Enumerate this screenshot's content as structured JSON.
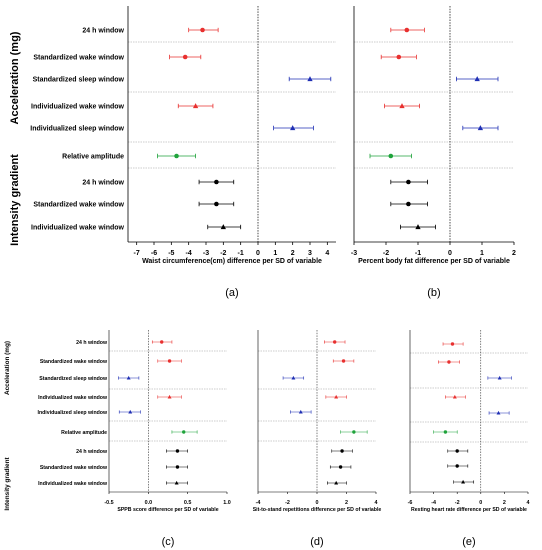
{
  "colors": {
    "red": "#e8302f",
    "blue": "#1f2fb4",
    "green": "#1fa33b",
    "black": "#000000"
  },
  "groups": {
    "acceleration": "Acceleration (mg)",
    "intensity": "Intensity gradient"
  },
  "rows": [
    "24 h window",
    "Standardized wake window",
    "Standardized sleep window",
    "Individualized wake window",
    "Individualized sleep window",
    "Relative amplitude",
    "24 h window",
    "Standardized wake window",
    "Individualized wake window"
  ],
  "row_colors": [
    "red",
    "red",
    "blue",
    "red",
    "blue",
    "green",
    "black",
    "black",
    "black"
  ],
  "row_markers": [
    "circle",
    "circle",
    "triangle",
    "triangle",
    "triangle",
    "circle",
    "circle",
    "circle",
    "triangle"
  ],
  "chart_data": [
    {
      "id": "a",
      "panel_label": "(a)",
      "type": "forest",
      "xlabel": "Waist circumference(cm) difference per SD of variable",
      "xlim": [
        -7.5,
        4.5
      ],
      "ticks": [
        -7,
        -6,
        -5,
        -4,
        -3,
        -2,
        -1,
        0,
        1,
        2,
        3,
        4
      ],
      "reference_x": 0,
      "points": [
        {
          "est": -3.2,
          "lo": -4.0,
          "hi": -2.3
        },
        {
          "est": -4.2,
          "lo": -5.1,
          "hi": -3.3
        },
        {
          "est": 3.0,
          "lo": 1.8,
          "hi": 4.2
        },
        {
          "est": -3.6,
          "lo": -4.6,
          "hi": -2.6
        },
        {
          "est": 2.0,
          "lo": 0.9,
          "hi": 3.2
        },
        {
          "est": -4.7,
          "lo": -5.8,
          "hi": -3.6
        },
        {
          "est": -2.4,
          "lo": -3.4,
          "hi": -1.4
        },
        {
          "est": -2.4,
          "lo": -3.4,
          "hi": -1.4
        },
        {
          "est": -2.0,
          "lo": -2.9,
          "hi": -1.0
        }
      ]
    },
    {
      "id": "b",
      "panel_label": "(b)",
      "type": "forest",
      "xlabel": "Percent body fat difference per SD of variable",
      "xlim": [
        -3,
        2
      ],
      "ticks": [
        -3,
        -2,
        -1,
        0,
        1,
        2
      ],
      "reference_x": 0,
      "points": [
        {
          "est": -1.35,
          "lo": -1.85,
          "hi": -0.8
        },
        {
          "est": -1.6,
          "lo": -2.15,
          "hi": -1.05
        },
        {
          "est": 0.85,
          "lo": 0.2,
          "hi": 1.5
        },
        {
          "est": -1.5,
          "lo": -2.05,
          "hi": -0.95
        },
        {
          "est": 0.95,
          "lo": 0.4,
          "hi": 1.5
        },
        {
          "est": -1.85,
          "lo": -2.5,
          "hi": -1.2
        },
        {
          "est": -1.3,
          "lo": -1.85,
          "hi": -0.7
        },
        {
          "est": -1.3,
          "lo": -1.85,
          "hi": -0.7
        },
        {
          "est": -1.0,
          "lo": -1.55,
          "hi": -0.45
        }
      ]
    },
    {
      "id": "c",
      "panel_label": "(c)",
      "type": "forest",
      "xlabel": "SPPB score difference per SD of variable",
      "xlim": [
        -0.5,
        1.0
      ],
      "ticks": [
        "-0.5",
        "0.0",
        "0.5",
        "1.0"
      ],
      "reference_x": 0,
      "points": [
        {
          "est": 0.17,
          "lo": 0.05,
          "hi": 0.3
        },
        {
          "est": 0.27,
          "lo": 0.12,
          "hi": 0.42
        },
        {
          "est": -0.25,
          "lo": -0.38,
          "hi": -0.12
        },
        {
          "est": 0.27,
          "lo": 0.12,
          "hi": 0.42
        },
        {
          "est": -0.23,
          "lo": -0.37,
          "hi": -0.1
        },
        {
          "est": 0.45,
          "lo": 0.3,
          "hi": 0.62
        },
        {
          "est": 0.37,
          "lo": 0.23,
          "hi": 0.5
        },
        {
          "est": 0.37,
          "lo": 0.23,
          "hi": 0.5
        },
        {
          "est": 0.36,
          "lo": 0.23,
          "hi": 0.5
        }
      ]
    },
    {
      "id": "d",
      "panel_label": "(d)",
      "type": "forest",
      "xlabel": "Sit-to-stand repetitions difference per SD of variable",
      "xlim": [
        -4,
        4
      ],
      "ticks": [
        -4,
        -2,
        0,
        2,
        4
      ],
      "reference_x": 0,
      "points": [
        {
          "est": 1.2,
          "lo": 0.5,
          "hi": 1.9
        },
        {
          "est": 1.8,
          "lo": 1.1,
          "hi": 2.5
        },
        {
          "est": -1.6,
          "lo": -2.3,
          "hi": -0.9
        },
        {
          "est": 1.3,
          "lo": 0.6,
          "hi": 2.0
        },
        {
          "est": -1.1,
          "lo": -1.8,
          "hi": -0.4
        },
        {
          "est": 2.5,
          "lo": 1.6,
          "hi": 3.4
        },
        {
          "est": 1.7,
          "lo": 1.0,
          "hi": 2.4
        },
        {
          "est": 1.6,
          "lo": 0.9,
          "hi": 2.3
        },
        {
          "est": 1.3,
          "lo": 0.7,
          "hi": 2.0
        }
      ]
    },
    {
      "id": "e",
      "panel_label": "(e)",
      "type": "forest",
      "xlabel": "Resting heart rate difference per SD of variable",
      "xlim": [
        -6,
        4
      ],
      "ticks": [
        -6,
        -4,
        -2,
        0,
        2,
        4
      ],
      "reference_x": 0,
      "points": [
        {
          "est": -2.4,
          "lo": -3.2,
          "hi": -1.5
        },
        {
          "est": -2.7,
          "lo": -3.6,
          "hi": -1.8
        },
        {
          "est": 1.6,
          "lo": 0.6,
          "hi": 2.6
        },
        {
          "est": -2.2,
          "lo": -3.0,
          "hi": -1.3
        },
        {
          "est": 1.5,
          "lo": 0.7,
          "hi": 2.4
        },
        {
          "est": -3.0,
          "lo": -4.0,
          "hi": -2.0
        },
        {
          "est": -2.0,
          "lo": -2.8,
          "hi": -1.1
        },
        {
          "est": -2.0,
          "lo": -2.8,
          "hi": -1.1
        },
        {
          "est": -1.5,
          "lo": -2.3,
          "hi": -0.6
        }
      ]
    }
  ]
}
